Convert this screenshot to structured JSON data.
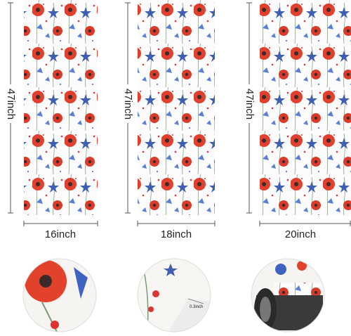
{
  "mats": [
    {
      "height_label": "47inch",
      "width_label": "16inch"
    },
    {
      "height_label": "47inch",
      "width_label": "18inch"
    },
    {
      "height_label": "47inch",
      "width_label": "20inch"
    }
  ],
  "detail": {
    "thickness_label": "0.3inch"
  }
}
